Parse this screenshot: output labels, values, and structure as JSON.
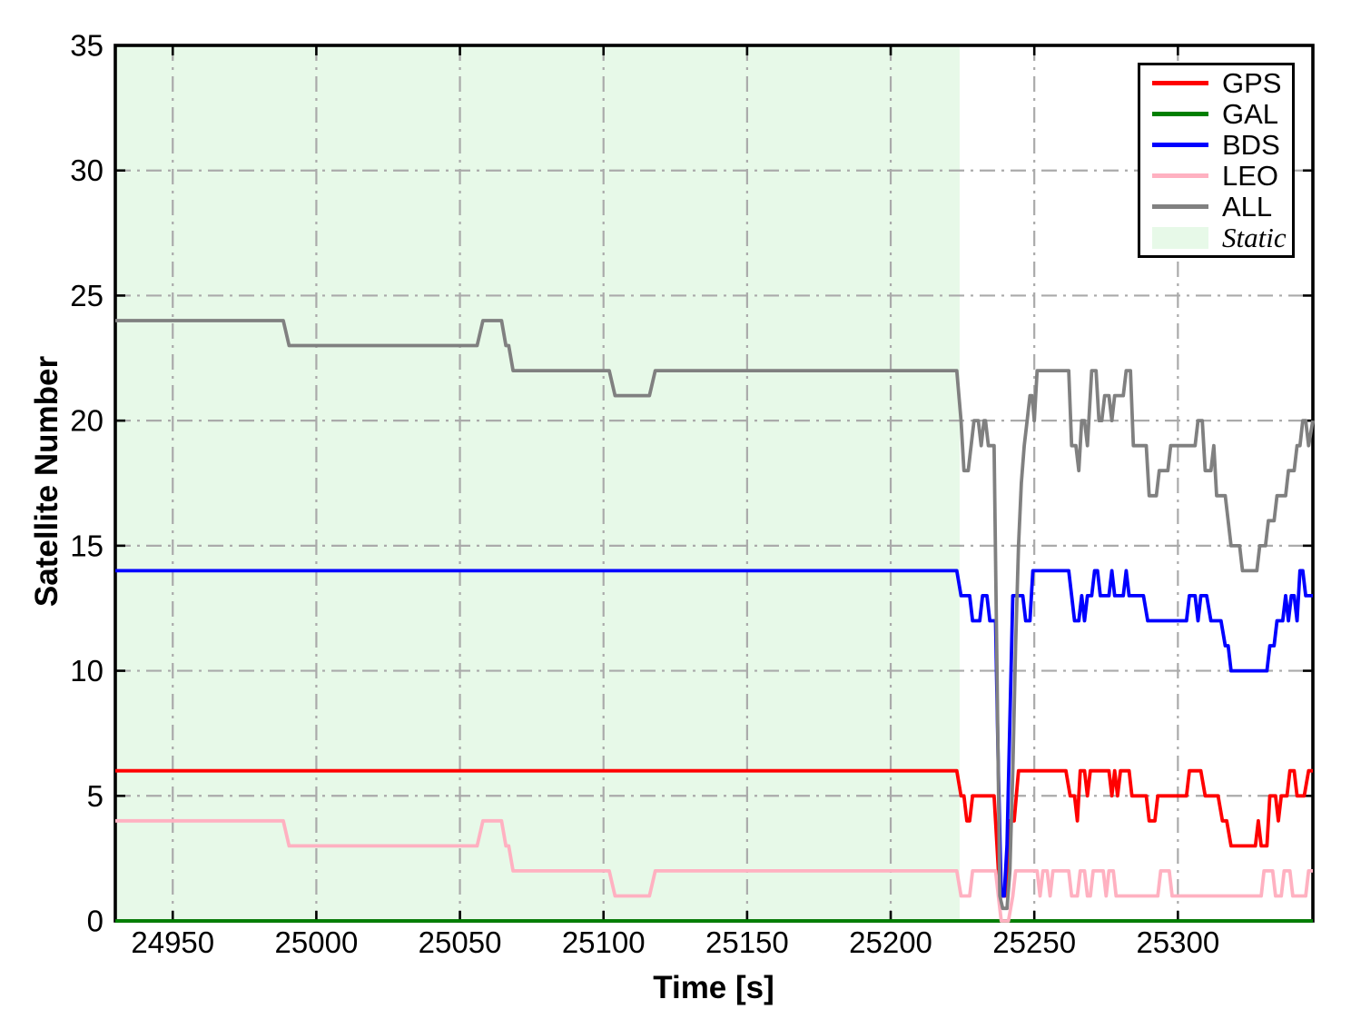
{
  "chart_data": {
    "type": "line",
    "title": "",
    "xlabel": "Time [s]",
    "ylabel": "Satellite Number",
    "xlim": [
      24930,
      25347
    ],
    "ylim": [
      0,
      35
    ],
    "x_ticks": [
      24950,
      25000,
      25050,
      25100,
      25150,
      25200,
      25250,
      25300
    ],
    "y_ticks": [
      0,
      5,
      10,
      15,
      20,
      25,
      30,
      35
    ],
    "grid": "on",
    "grid_style": "dash-dot",
    "grid_color": "#aaaaaa",
    "axis_color": "#000000",
    "legend_position": "top-right",
    "static_region": {
      "label": "Static",
      "x_start": 24930,
      "x_end": 25224,
      "fill": "#e7f9e8"
    },
    "legend_entries": [
      {
        "label": "GPS",
        "type": "line",
        "color": "#ff0000"
      },
      {
        "label": "GAL",
        "type": "line",
        "color": "#007f00"
      },
      {
        "label": "BDS",
        "type": "line",
        "color": "#0000ff"
      },
      {
        "label": "LEO",
        "type": "line",
        "color": "#ffb1c1"
      },
      {
        "label": "ALL",
        "type": "line",
        "color": "#808080"
      },
      {
        "label": "Static",
        "type": "patch",
        "color": "#e7f9e8"
      }
    ],
    "series": [
      {
        "name": "GPS",
        "color": "#ff0000",
        "points": [
          [
            24930,
            6
          ],
          [
            25223,
            6
          ],
          [
            25224.5,
            5
          ],
          [
            25225.5,
            5
          ],
          [
            25226.5,
            4
          ],
          [
            25227.5,
            4
          ],
          [
            25228.5,
            5
          ],
          [
            25236,
            5
          ],
          [
            25237,
            3
          ],
          [
            25238,
            1
          ],
          [
            25240,
            1
          ],
          [
            25241.5,
            4
          ],
          [
            25243,
            4
          ],
          [
            25244.5,
            6
          ],
          [
            25261,
            6
          ],
          [
            25262.5,
            5
          ],
          [
            25264,
            5
          ],
          [
            25265,
            4
          ],
          [
            25266,
            6
          ],
          [
            25267.5,
            6
          ],
          [
            25268.5,
            5
          ],
          [
            25269.5,
            6
          ],
          [
            25276,
            6
          ],
          [
            25277,
            5
          ],
          [
            25278,
            6
          ],
          [
            25279,
            5
          ],
          [
            25280,
            6
          ],
          [
            25283,
            6
          ],
          [
            25284,
            5
          ],
          [
            25289,
            5
          ],
          [
            25290,
            4
          ],
          [
            25292,
            4
          ],
          [
            25293,
            5
          ],
          [
            25303,
            5
          ],
          [
            25304,
            6
          ],
          [
            25308,
            6
          ],
          [
            25309.5,
            5
          ],
          [
            25314,
            5
          ],
          [
            25315.5,
            4
          ],
          [
            25317,
            4
          ],
          [
            25318.5,
            3
          ],
          [
            25327,
            3
          ],
          [
            25328,
            4
          ],
          [
            25329,
            3
          ],
          [
            25331,
            3
          ],
          [
            25332,
            5
          ],
          [
            25334,
            5
          ],
          [
            25335,
            4
          ],
          [
            25336,
            5
          ],
          [
            25338,
            5
          ],
          [
            25339,
            6
          ],
          [
            25340.5,
            6
          ],
          [
            25341.5,
            5
          ],
          [
            25344,
            5
          ],
          [
            25345.5,
            6
          ],
          [
            25347,
            6
          ]
        ]
      },
      {
        "name": "GAL",
        "color": "#007f00",
        "points": [
          [
            24930,
            0
          ],
          [
            25347,
            0
          ]
        ]
      },
      {
        "name": "BDS",
        "color": "#0000ff",
        "points": [
          [
            24930,
            14
          ],
          [
            25223,
            14
          ],
          [
            25224.5,
            13
          ],
          [
            25227.5,
            13
          ],
          [
            25228.5,
            12
          ],
          [
            25231,
            12
          ],
          [
            25232,
            13
          ],
          [
            25233.5,
            13
          ],
          [
            25234.5,
            12
          ],
          [
            25236.5,
            12
          ],
          [
            25237.5,
            6
          ],
          [
            25238.5,
            1
          ],
          [
            25239.5,
            1
          ],
          [
            25240.5,
            3
          ],
          [
            25241.5,
            8
          ],
          [
            25242.5,
            13
          ],
          [
            25246,
            13
          ],
          [
            25247,
            12
          ],
          [
            25248.5,
            12
          ],
          [
            25249.5,
            14
          ],
          [
            25262,
            14
          ],
          [
            25263,
            13
          ],
          [
            25264,
            12
          ],
          [
            25265.5,
            12
          ],
          [
            25266.5,
            13
          ],
          [
            25267.5,
            12
          ],
          [
            25268.5,
            13
          ],
          [
            25270,
            13
          ],
          [
            25271,
            14
          ],
          [
            25272,
            14
          ],
          [
            25273,
            13
          ],
          [
            25276,
            13
          ],
          [
            25277,
            14
          ],
          [
            25278,
            13
          ],
          [
            25281,
            13
          ],
          [
            25282,
            14
          ],
          [
            25283,
            13
          ],
          [
            25288,
            13
          ],
          [
            25289.5,
            12
          ],
          [
            25303,
            12
          ],
          [
            25304,
            13
          ],
          [
            25306,
            13
          ],
          [
            25307,
            12
          ],
          [
            25308,
            13
          ],
          [
            25310,
            13
          ],
          [
            25311.5,
            12
          ],
          [
            25315,
            12
          ],
          [
            25316.5,
            11
          ],
          [
            25317.5,
            11
          ],
          [
            25318.5,
            10
          ],
          [
            25331,
            10
          ],
          [
            25332,
            11
          ],
          [
            25333.5,
            11
          ],
          [
            25334.5,
            12
          ],
          [
            25336.5,
            12
          ],
          [
            25337.5,
            13
          ],
          [
            25338.5,
            12
          ],
          [
            25339.5,
            13
          ],
          [
            25340.5,
            13
          ],
          [
            25341.5,
            12
          ],
          [
            25342.5,
            14
          ],
          [
            25343.5,
            14
          ],
          [
            25344.5,
            13
          ],
          [
            25347,
            13
          ]
        ]
      },
      {
        "name": "LEO",
        "color": "#ffb1c1",
        "points": [
          [
            24930,
            4
          ],
          [
            24988.5,
            4
          ],
          [
            24990.5,
            3
          ],
          [
            25056,
            3
          ],
          [
            25058,
            4
          ],
          [
            25064.5,
            4
          ],
          [
            25066,
            3
          ],
          [
            25067,
            3
          ],
          [
            25068.5,
            2
          ],
          [
            25102,
            2
          ],
          [
            25104,
            1
          ],
          [
            25116,
            1
          ],
          [
            25118,
            2
          ],
          [
            25223,
            2
          ],
          [
            25224.5,
            1
          ],
          [
            25227.5,
            1
          ],
          [
            25228.5,
            2
          ],
          [
            25236.5,
            2
          ],
          [
            25237.5,
            1
          ],
          [
            25238.5,
            0
          ],
          [
            25241,
            0
          ],
          [
            25242.5,
            1
          ],
          [
            25243.5,
            2
          ],
          [
            25251,
            2
          ],
          [
            25252,
            1
          ],
          [
            25253,
            2
          ],
          [
            25254.5,
            2
          ],
          [
            25255.5,
            1
          ],
          [
            25256.5,
            2
          ],
          [
            25262,
            2
          ],
          [
            25263,
            1
          ],
          [
            25265,
            1
          ],
          [
            25266,
            2
          ],
          [
            25267.5,
            2
          ],
          [
            25268.5,
            1
          ],
          [
            25269.5,
            1
          ],
          [
            25270.5,
            2
          ],
          [
            25274,
            2
          ],
          [
            25275,
            1
          ],
          [
            25276,
            2
          ],
          [
            25277.5,
            2
          ],
          [
            25278.5,
            1
          ],
          [
            25293,
            1
          ],
          [
            25294,
            2
          ],
          [
            25297,
            2
          ],
          [
            25298,
            1
          ],
          [
            25329,
            1
          ],
          [
            25330,
            2
          ],
          [
            25333,
            2
          ],
          [
            25334,
            1
          ],
          [
            25336,
            1
          ],
          [
            25337,
            2
          ],
          [
            25339,
            2
          ],
          [
            25340,
            1
          ],
          [
            25344.5,
            1
          ],
          [
            25345.5,
            2
          ],
          [
            25347,
            2
          ]
        ]
      },
      {
        "name": "ALL",
        "color": "#808080",
        "points": [
          [
            24930,
            24
          ],
          [
            24988.5,
            24
          ],
          [
            24990.5,
            23
          ],
          [
            25056,
            23
          ],
          [
            25058,
            24
          ],
          [
            25064.5,
            24
          ],
          [
            25066,
            23
          ],
          [
            25067,
            23
          ],
          [
            25068.5,
            22
          ],
          [
            25102,
            22
          ],
          [
            25104,
            21
          ],
          [
            25116,
            21
          ],
          [
            25118,
            22
          ],
          [
            25223,
            22
          ],
          [
            25224.5,
            20
          ],
          [
            25225.5,
            18
          ],
          [
            25227,
            18
          ],
          [
            25229,
            20
          ],
          [
            25230.5,
            20
          ],
          [
            25231.5,
            19
          ],
          [
            25232.5,
            20
          ],
          [
            25233,
            20
          ],
          [
            25234,
            19
          ],
          [
            25236,
            19
          ],
          [
            25237,
            10
          ],
          [
            25238,
            1
          ],
          [
            25239,
            0.5
          ],
          [
            25240.5,
            0.5
          ],
          [
            25241.5,
            2
          ],
          [
            25242.5,
            6
          ],
          [
            25243.5,
            11
          ],
          [
            25244.5,
            15
          ],
          [
            25245.5,
            17.5
          ],
          [
            25246.5,
            19
          ],
          [
            25247.5,
            20
          ],
          [
            25248.5,
            21
          ],
          [
            25249.2,
            21
          ],
          [
            25250,
            20
          ],
          [
            25251,
            22
          ],
          [
            25262,
            22
          ],
          [
            25263,
            19
          ],
          [
            25264.5,
            19
          ],
          [
            25265.5,
            18
          ],
          [
            25266.5,
            20
          ],
          [
            25267.5,
            20
          ],
          [
            25268.5,
            19
          ],
          [
            25270,
            22
          ],
          [
            25271.5,
            22
          ],
          [
            25272.5,
            20
          ],
          [
            25273.5,
            20
          ],
          [
            25274.5,
            21
          ],
          [
            25276,
            21
          ],
          [
            25277,
            20
          ],
          [
            25278,
            21
          ],
          [
            25281,
            21
          ],
          [
            25282,
            22
          ],
          [
            25283.5,
            22
          ],
          [
            25284.5,
            19
          ],
          [
            25289,
            19
          ],
          [
            25290,
            17
          ],
          [
            25292.5,
            17
          ],
          [
            25293.5,
            18
          ],
          [
            25296.5,
            18
          ],
          [
            25297.5,
            19
          ],
          [
            25306,
            19
          ],
          [
            25307,
            20
          ],
          [
            25308.5,
            20
          ],
          [
            25309.5,
            18
          ],
          [
            25311.5,
            18
          ],
          [
            25312.5,
            19
          ],
          [
            25313.5,
            17
          ],
          [
            25316.5,
            17
          ],
          [
            25317.5,
            16
          ],
          [
            25318.5,
            15
          ],
          [
            25321.5,
            15
          ],
          [
            25322.5,
            14
          ],
          [
            25327.5,
            14
          ],
          [
            25328.5,
            15
          ],
          [
            25330.5,
            15
          ],
          [
            25331.5,
            16
          ],
          [
            25333.5,
            16
          ],
          [
            25334.5,
            17
          ],
          [
            25337.5,
            17
          ],
          [
            25338.5,
            18
          ],
          [
            25340.5,
            18
          ],
          [
            25341.5,
            19
          ],
          [
            25342.5,
            19
          ],
          [
            25343.5,
            20
          ],
          [
            25344.5,
            20
          ],
          [
            25345.5,
            19
          ],
          [
            25347,
            20
          ]
        ]
      }
    ]
  }
}
